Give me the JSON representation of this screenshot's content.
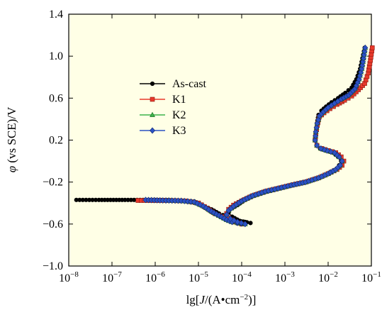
{
  "chart_data": {
    "type": "line",
    "xlabel_parts": [
      "lg[",
      "J",
      "/(A•cm",
      "−2",
      ")]"
    ],
    "ylabel_parts": [
      "φ",
      " (vs SCE)/V"
    ],
    "x_scale": "log",
    "xlim": [
      1e-08,
      0.1
    ],
    "ylim": [
      -1.0,
      1.4
    ],
    "x_ticks": [
      {
        "value": 1e-08,
        "base": "10",
        "exp": "−8"
      },
      {
        "value": 1e-07,
        "base": "10",
        "exp": "−7"
      },
      {
        "value": 1e-06,
        "base": "10",
        "exp": "−6"
      },
      {
        "value": 1e-05,
        "base": "10",
        "exp": "−5"
      },
      {
        "value": 0.0001,
        "base": "10",
        "exp": "−4"
      },
      {
        "value": 0.001,
        "base": "10",
        "exp": "−3"
      },
      {
        "value": 0.01,
        "base": "10",
        "exp": "−2"
      },
      {
        "value": 0.1,
        "base": "10",
        "exp": "−1"
      }
    ],
    "y_ticks": [
      {
        "value": -1.0,
        "label": "−1.0"
      },
      {
        "value": -0.6,
        "label": "−0.6"
      },
      {
        "value": -0.2,
        "label": "−0.2"
      },
      {
        "value": 0.2,
        "label": "0.2"
      },
      {
        "value": 0.6,
        "label": "0.6"
      },
      {
        "value": 1.0,
        "label": "1.0"
      },
      {
        "value": 1.4,
        "label": "1.4"
      }
    ],
    "grid": false,
    "legend_position": "upper-left",
    "series": [
      {
        "name": "As-cast",
        "color": "#000000",
        "marker": "circle",
        "points": [
          [
            1.5e-08,
            -0.37
          ],
          [
            5e-08,
            -0.37
          ],
          [
            2e-07,
            -0.37
          ],
          [
            1e-06,
            -0.37
          ],
          [
            3e-06,
            -0.375
          ],
          [
            8e-06,
            -0.385
          ],
          [
            1.2e-05,
            -0.42
          ],
          [
            2e-05,
            -0.46
          ],
          [
            3e-05,
            -0.5
          ],
          [
            4.5e-05,
            -0.53
          ],
          [
            6e-05,
            -0.55
          ],
          [
            8e-05,
            -0.57
          ],
          [
            0.00012,
            -0.58
          ],
          [
            0.00016,
            -0.59
          ],
          [
            9e-05,
            -0.57
          ],
          [
            6e-05,
            -0.53
          ],
          [
            5e-05,
            -0.49
          ],
          [
            6e-05,
            -0.45
          ],
          [
            8e-05,
            -0.42
          ],
          [
            0.00012,
            -0.37
          ],
          [
            0.0002,
            -0.33
          ],
          [
            0.0004,
            -0.29
          ],
          [
            0.0008,
            -0.26
          ],
          [
            0.0015,
            -0.23
          ],
          [
            0.003,
            -0.2
          ],
          [
            0.006,
            -0.16
          ],
          [
            0.01,
            -0.12
          ],
          [
            0.015,
            -0.08
          ],
          [
            0.018,
            -0.04
          ],
          [
            0.02,
            0.0
          ],
          [
            0.017,
            0.04
          ],
          [
            0.013,
            0.08
          ],
          [
            0.009,
            0.1
          ],
          [
            0.0065,
            0.12
          ],
          [
            0.0055,
            0.15
          ],
          [
            0.005,
            0.2
          ],
          [
            0.0052,
            0.28
          ],
          [
            0.0055,
            0.36
          ],
          [
            0.006,
            0.44
          ],
          [
            0.007,
            0.48
          ],
          [
            0.009,
            0.52
          ],
          [
            0.012,
            0.56
          ],
          [
            0.017,
            0.6
          ],
          [
            0.025,
            0.65
          ],
          [
            0.035,
            0.7
          ],
          [
            0.045,
            0.78
          ],
          [
            0.055,
            0.88
          ],
          [
            0.062,
            0.98
          ],
          [
            0.07,
            1.08
          ]
        ]
      },
      {
        "name": "K1",
        "color": "#e8392b",
        "marker": "square",
        "points": [
          [
            4e-07,
            -0.375
          ],
          [
            8e-07,
            -0.375
          ],
          [
            2e-06,
            -0.375
          ],
          [
            5e-06,
            -0.38
          ],
          [
            1e-05,
            -0.4
          ],
          [
            1.6e-05,
            -0.45
          ],
          [
            2.4e-05,
            -0.5
          ],
          [
            3.5e-05,
            -0.53
          ],
          [
            5e-05,
            -0.56
          ],
          [
            7e-05,
            -0.58
          ],
          [
            0.0001,
            -0.6
          ],
          [
            7e-05,
            -0.58
          ],
          [
            5e-05,
            -0.54
          ],
          [
            4.5e-05,
            -0.5
          ],
          [
            5e-05,
            -0.46
          ],
          [
            6.5e-05,
            -0.42
          ],
          [
            0.0001,
            -0.38
          ],
          [
            0.00018,
            -0.33
          ],
          [
            0.00035,
            -0.29
          ],
          [
            0.0007,
            -0.26
          ],
          [
            0.0014,
            -0.23
          ],
          [
            0.003,
            -0.2
          ],
          [
            0.006,
            -0.16
          ],
          [
            0.01,
            -0.12
          ],
          [
            0.016,
            -0.08
          ],
          [
            0.021,
            -0.04
          ],
          [
            0.023,
            0.0
          ],
          [
            0.02,
            0.04
          ],
          [
            0.015,
            0.08
          ],
          [
            0.01,
            0.1
          ],
          [
            0.007,
            0.12
          ],
          [
            0.0055,
            0.15
          ],
          [
            0.005,
            0.2
          ],
          [
            0.0052,
            0.26
          ],
          [
            0.0056,
            0.34
          ],
          [
            0.0062,
            0.42
          ],
          [
            0.008,
            0.46
          ],
          [
            0.011,
            0.5
          ],
          [
            0.016,
            0.54
          ],
          [
            0.024,
            0.58
          ],
          [
            0.035,
            0.62
          ],
          [
            0.05,
            0.68
          ],
          [
            0.07,
            0.74
          ],
          [
            0.085,
            0.84
          ],
          [
            0.095,
            0.96
          ],
          [
            0.105,
            1.08
          ]
        ]
      },
      {
        "name": "K2",
        "color": "#3db34a",
        "marker": "triangle",
        "points": [
          [
            2e-06,
            -0.375
          ],
          [
            4e-06,
            -0.378
          ],
          [
            8e-06,
            -0.39
          ],
          [
            1.3e-05,
            -0.43
          ],
          [
            2e-05,
            -0.48
          ],
          [
            3e-05,
            -0.52
          ],
          [
            4.5e-05,
            -0.56
          ],
          [
            6e-05,
            -0.58
          ],
          [
            8e-05,
            -0.59
          ],
          [
            0.00012,
            -0.6
          ],
          [
            8e-05,
            -0.58
          ],
          [
            5.5e-05,
            -0.55
          ],
          [
            4.5e-05,
            -0.51
          ],
          [
            5e-05,
            -0.47
          ],
          [
            6.5e-05,
            -0.43
          ],
          [
            0.0001,
            -0.38
          ],
          [
            0.00018,
            -0.33
          ],
          [
            0.00035,
            -0.29
          ],
          [
            0.0007,
            -0.26
          ],
          [
            0.0014,
            -0.23
          ],
          [
            0.003,
            -0.2
          ],
          [
            0.006,
            -0.16
          ],
          [
            0.01,
            -0.12
          ],
          [
            0.015,
            -0.08
          ],
          [
            0.019,
            -0.04
          ],
          [
            0.021,
            0.0
          ],
          [
            0.018,
            0.04
          ],
          [
            0.014,
            0.08
          ],
          [
            0.0095,
            0.1
          ],
          [
            0.0068,
            0.12
          ],
          [
            0.0055,
            0.15
          ],
          [
            0.005,
            0.2
          ],
          [
            0.0052,
            0.28
          ],
          [
            0.0056,
            0.36
          ],
          [
            0.0063,
            0.43
          ],
          [
            0.0078,
            0.47
          ],
          [
            0.01,
            0.51
          ],
          [
            0.014,
            0.55
          ],
          [
            0.02,
            0.59
          ],
          [
            0.03,
            0.63
          ],
          [
            0.042,
            0.69
          ],
          [
            0.052,
            0.78
          ],
          [
            0.06,
            0.88
          ],
          [
            0.066,
            0.98
          ],
          [
            0.072,
            1.08
          ]
        ]
      },
      {
        "name": "K3",
        "color": "#2c52c4",
        "marker": "diamond",
        "points": [
          [
            6e-07,
            -0.37
          ],
          [
            1.5e-06,
            -0.375
          ],
          [
            4e-06,
            -0.378
          ],
          [
            8e-06,
            -0.39
          ],
          [
            1.3e-05,
            -0.43
          ],
          [
            2e-05,
            -0.48
          ],
          [
            3e-05,
            -0.52
          ],
          [
            4.5e-05,
            -0.56
          ],
          [
            6e-05,
            -0.58
          ],
          [
            8e-05,
            -0.59
          ],
          [
            0.00012,
            -0.6
          ],
          [
            8e-05,
            -0.58
          ],
          [
            5.5e-05,
            -0.55
          ],
          [
            4.5e-05,
            -0.51
          ],
          [
            5e-05,
            -0.47
          ],
          [
            6.5e-05,
            -0.43
          ],
          [
            0.0001,
            -0.38
          ],
          [
            0.00018,
            -0.33
          ],
          [
            0.00035,
            -0.29
          ],
          [
            0.0007,
            -0.26
          ],
          [
            0.0014,
            -0.23
          ],
          [
            0.003,
            -0.2
          ],
          [
            0.006,
            -0.16
          ],
          [
            0.01,
            -0.12
          ],
          [
            0.015,
            -0.08
          ],
          [
            0.019,
            -0.04
          ],
          [
            0.021,
            0.0
          ],
          [
            0.018,
            0.04
          ],
          [
            0.014,
            0.08
          ],
          [
            0.0095,
            0.1
          ],
          [
            0.0068,
            0.12
          ],
          [
            0.0055,
            0.15
          ],
          [
            0.005,
            0.2
          ],
          [
            0.0052,
            0.28
          ],
          [
            0.0056,
            0.36
          ],
          [
            0.0063,
            0.43
          ],
          [
            0.0078,
            0.47
          ],
          [
            0.01,
            0.51
          ],
          [
            0.014,
            0.55
          ],
          [
            0.02,
            0.59
          ],
          [
            0.03,
            0.63
          ],
          [
            0.042,
            0.69
          ],
          [
            0.052,
            0.78
          ],
          [
            0.06,
            0.88
          ],
          [
            0.066,
            0.98
          ],
          [
            0.072,
            1.08
          ]
        ]
      }
    ]
  }
}
